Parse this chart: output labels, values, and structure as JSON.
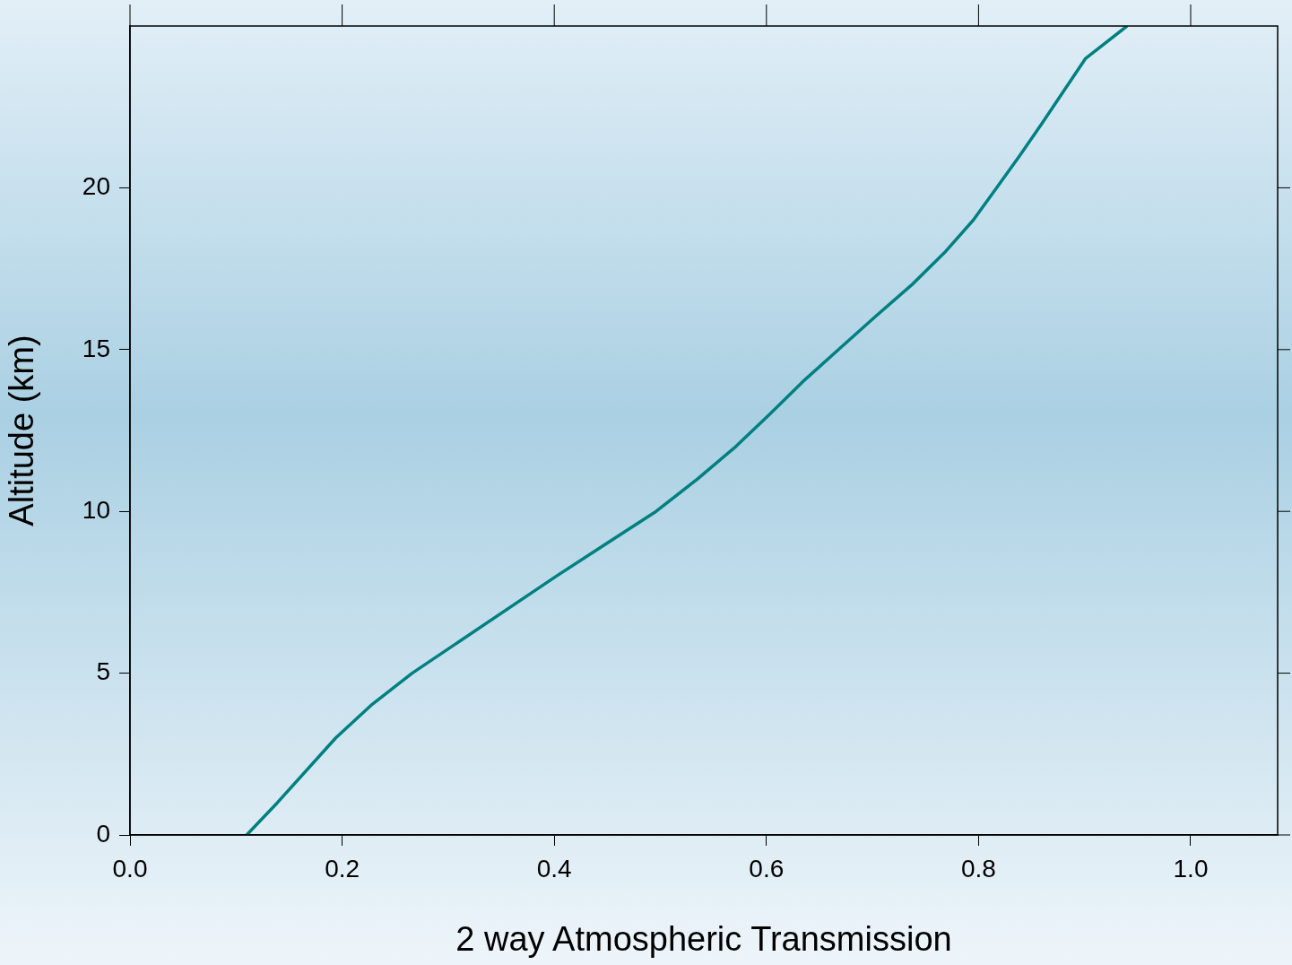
{
  "chart_data": {
    "type": "line",
    "xlabel": "2 way Atmospheric Transmission",
    "ylabel": "Altitude (km)",
    "x": [
      0.11,
      0.139,
      0.194,
      0.227,
      0.266,
      0.402,
      0.449,
      0.496,
      0.535,
      0.571,
      0.603,
      0.634,
      0.668,
      0.702,
      0.737,
      0.768,
      0.795,
      0.817,
      0.839,
      0.86,
      0.901,
      0.94
    ],
    "series": [
      {
        "color": "#008080",
        "values": [
          0,
          1,
          3,
          4,
          5,
          8,
          9,
          10,
          11,
          12,
          13,
          14,
          15,
          16,
          17,
          18,
          19,
          20,
          21,
          22,
          24,
          25
        ]
      }
    ],
    "xlim": [
      0,
      1.082
    ],
    "xticks": [
      {
        "value": 0,
        "label": "0.0"
      },
      {
        "value": 0.2,
        "label": "0.2"
      },
      {
        "value": 0.4,
        "label": "0.4"
      },
      {
        "value": 0.6,
        "label": "0.6"
      },
      {
        "value": 0.8,
        "label": "0.8"
      },
      {
        "value": 1,
        "label": "1.0"
      }
    ],
    "ylim": [
      0,
      25
    ],
    "yticks": [
      0,
      5,
      10,
      15,
      20
    ],
    "grid": false,
    "legend": false,
    "marker": "none",
    "line_style": "solid"
  }
}
